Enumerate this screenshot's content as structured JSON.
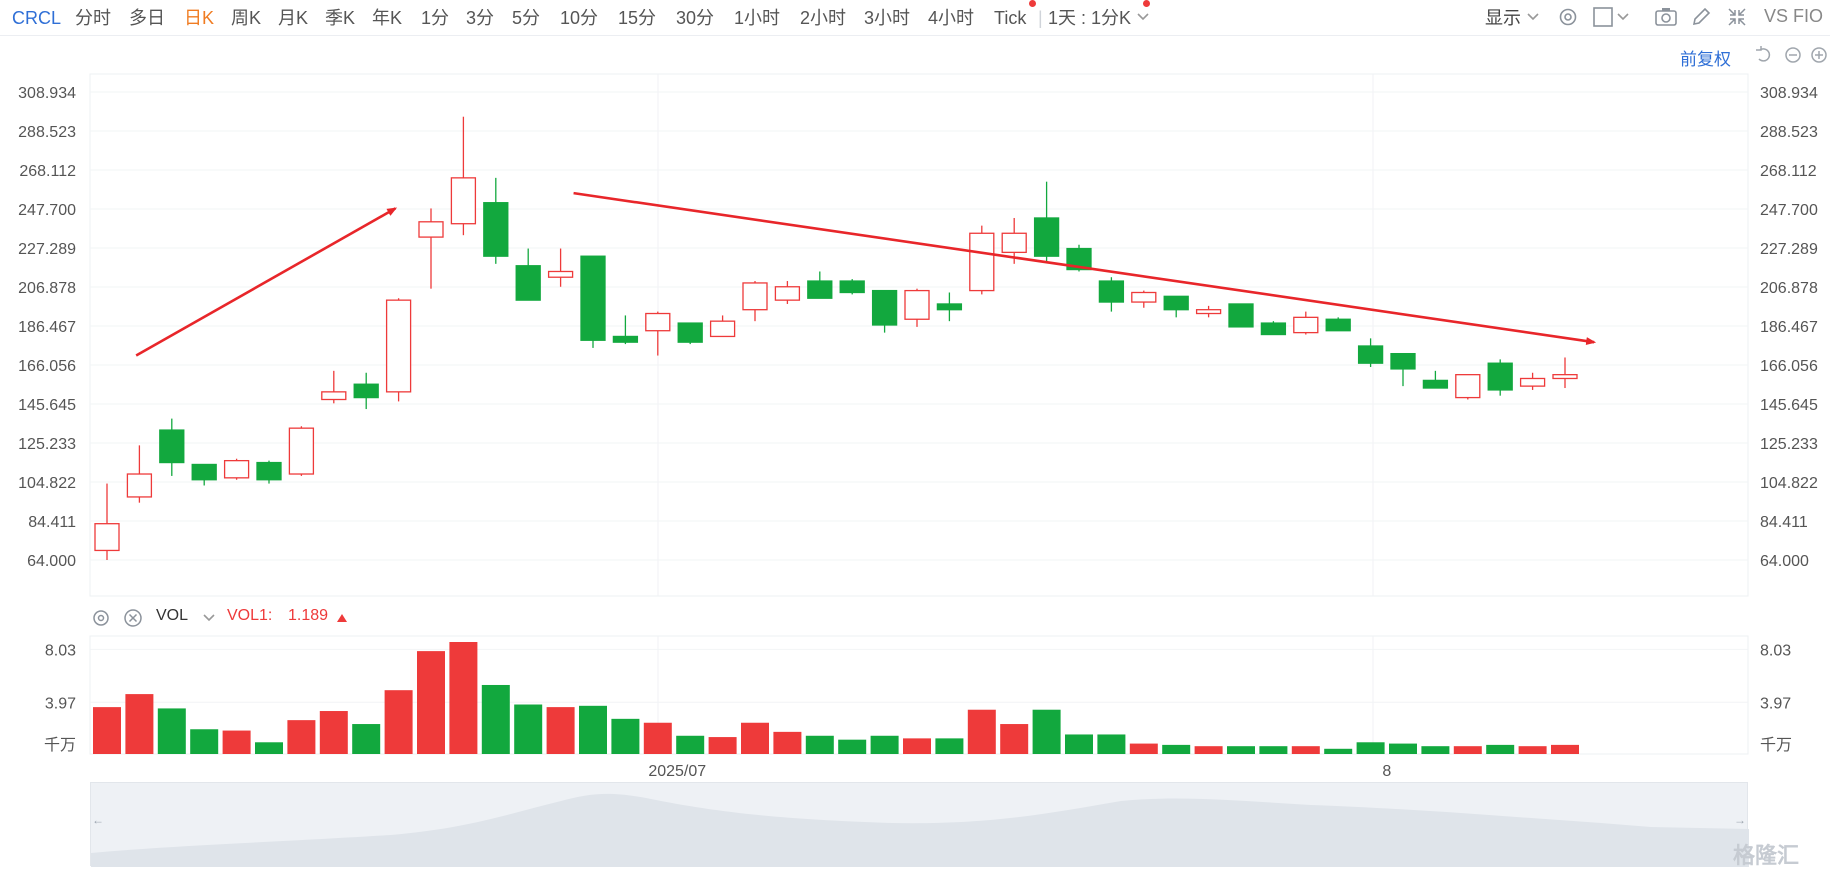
{
  "toolbar": {
    "symbol": "CRCL",
    "periods": [
      "分时",
      "多日",
      "日K",
      "周K",
      "月K",
      "季K",
      "年K",
      "1分",
      "3分",
      "5分",
      "10分",
      "15分",
      "30分",
      "1小时",
      "2小时",
      "3小时",
      "4小时",
      "Tick"
    ],
    "active_period": "日K",
    "interval_select": "1天 : 1分K",
    "display_label": "显示",
    "compare_label": "VS FIO"
  },
  "adjust_label": "前复权",
  "volume_panel": {
    "indicator": "VOL",
    "series_label": "VOL1:",
    "series_value": "1.189",
    "unit_label": "千万"
  },
  "watermark": "格隆汇",
  "colors": {
    "up": "#ee3a3a",
    "down": "#12a83e",
    "accent": "#2f6fd6",
    "active": "#f07c22"
  },
  "chart_data": {
    "type": "candlestick",
    "price_axis": {
      "min": 64.0,
      "max": 308.934,
      "ticks": [
        "308.934",
        "288.523",
        "268.112",
        "247.700",
        "227.289",
        "206.878",
        "186.467",
        "166.056",
        "145.645",
        "125.233",
        "104.822",
        "84.411",
        "64.000"
      ]
    },
    "volume_axis": {
      "min": 0,
      "max": 10,
      "ticks": [
        {
          "value": 8.03,
          "label": "8.03"
        },
        {
          "value": 3.97,
          "label": "3.97"
        },
        {
          "value": 0,
          "label": "千万"
        }
      ]
    },
    "x_labels": [
      {
        "index": 17.6,
        "label": "2025/07"
      },
      {
        "index": 39.5,
        "label": "8"
      }
    ],
    "candles": [
      {
        "o": 69,
        "h": 104,
        "l": 64,
        "c": 83,
        "v": 3.6
      },
      {
        "o": 97,
        "h": 124,
        "l": 94,
        "c": 109,
        "v": 4.6
      },
      {
        "o": 132,
        "h": 138,
        "l": 108,
        "c": 115,
        "v": 3.5
      },
      {
        "o": 114,
        "h": 114,
        "l": 103,
        "c": 106,
        "v": 1.9
      },
      {
        "o": 107,
        "h": 117,
        "l": 106,
        "c": 116,
        "v": 1.8
      },
      {
        "o": 115,
        "h": 116,
        "l": 104,
        "c": 106,
        "v": 0.9
      },
      {
        "o": 109,
        "h": 134,
        "l": 108,
        "c": 133,
        "v": 2.6
      },
      {
        "o": 148,
        "h": 163,
        "l": 146,
        "c": 152,
        "v": 3.3
      },
      {
        "o": 156,
        "h": 162,
        "l": 143,
        "c": 149,
        "v": 2.3
      },
      {
        "o": 152,
        "h": 201,
        "l": 147,
        "c": 200,
        "v": 4.9
      },
      {
        "o": 233,
        "h": 248,
        "l": 206,
        "c": 241,
        "v": 7.9
      },
      {
        "o": 240,
        "h": 296,
        "l": 234,
        "c": 264,
        "v": 8.6
      },
      {
        "o": 251,
        "h": 264,
        "l": 219,
        "c": 223,
        "v": 5.3
      },
      {
        "o": 218,
        "h": 227,
        "l": 200,
        "c": 200,
        "v": 3.8
      },
      {
        "o": 212,
        "h": 227,
        "l": 207,
        "c": 215,
        "v": 3.6
      },
      {
        "o": 223,
        "h": 223,
        "l": 175,
        "c": 179,
        "v": 3.7
      },
      {
        "o": 181,
        "h": 192,
        "l": 177,
        "c": 178,
        "v": 2.7
      },
      {
        "o": 184,
        "h": 194,
        "l": 171,
        "c": 193,
        "v": 2.4
      },
      {
        "o": 188,
        "h": 188,
        "l": 177,
        "c": 178,
        "v": 1.4
      },
      {
        "o": 181,
        "h": 192,
        "l": 181,
        "c": 189,
        "v": 1.3
      },
      {
        "o": 195,
        "h": 210,
        "l": 189,
        "c": 209,
        "v": 2.4
      },
      {
        "o": 200,
        "h": 210,
        "l": 198,
        "c": 207,
        "v": 1.7
      },
      {
        "o": 210,
        "h": 215,
        "l": 201,
        "c": 201,
        "v": 1.4
      },
      {
        "o": 210,
        "h": 211,
        "l": 203,
        "c": 204,
        "v": 1.1
      },
      {
        "o": 205,
        "h": 205,
        "l": 183,
        "c": 187,
        "v": 1.4
      },
      {
        "o": 190,
        "h": 206,
        "l": 186,
        "c": 205,
        "v": 1.2
      },
      {
        "o": 198,
        "h": 204,
        "l": 189,
        "c": 195,
        "v": 1.2
      },
      {
        "o": 205,
        "h": 239,
        "l": 203,
        "c": 235,
        "v": 3.4
      },
      {
        "o": 225,
        "h": 243,
        "l": 219,
        "c": 235,
        "v": 2.3
      },
      {
        "o": 243,
        "h": 262,
        "l": 220,
        "c": 223,
        "v": 3.4
      },
      {
        "o": 227,
        "h": 229,
        "l": 215,
        "c": 216,
        "v": 1.5
      },
      {
        "o": 210,
        "h": 212,
        "l": 194,
        "c": 199,
        "v": 1.5
      },
      {
        "o": 199,
        "h": 205,
        "l": 196,
        "c": 204,
        "v": 0.8
      },
      {
        "o": 202,
        "h": 202,
        "l": 191,
        "c": 195,
        "v": 0.7
      },
      {
        "o": 193,
        "h": 197,
        "l": 191,
        "c": 195,
        "v": 0.6
      },
      {
        "o": 198,
        "h": 198,
        "l": 186,
        "c": 186,
        "v": 0.6
      },
      {
        "o": 188,
        "h": 189,
        "l": 182,
        "c": 182,
        "v": 0.6
      },
      {
        "o": 183,
        "h": 194,
        "l": 182,
        "c": 191,
        "v": 0.6
      },
      {
        "o": 190,
        "h": 191,
        "l": 184,
        "c": 184,
        "v": 0.4
      },
      {
        "o": 176,
        "h": 180,
        "l": 165,
        "c": 167,
        "v": 0.9
      },
      {
        "o": 172,
        "h": 172,
        "l": 155,
        "c": 164,
        "v": 0.8
      },
      {
        "o": 158,
        "h": 163,
        "l": 154,
        "c": 154,
        "v": 0.6
      },
      {
        "o": 149,
        "h": 161,
        "l": 148,
        "c": 161,
        "v": 0.6
      },
      {
        "o": 167,
        "h": 169,
        "l": 150,
        "c": 153,
        "v": 0.7
      },
      {
        "o": 155,
        "h": 162,
        "l": 153,
        "c": 159,
        "v": 0.6
      },
      {
        "o": 159,
        "h": 170,
        "l": 154,
        "c": 161,
        "v": 0.7
      }
    ],
    "trend_lines": [
      {
        "from": {
          "index": 0.9,
          "price": 171.0
        },
        "to": {
          "index": 8.9,
          "price": 248.0
        }
      },
      {
        "from": {
          "index": 14.4,
          "price": 256.0
        },
        "to": {
          "index": 45.9,
          "price": 178.0
        }
      }
    ]
  }
}
